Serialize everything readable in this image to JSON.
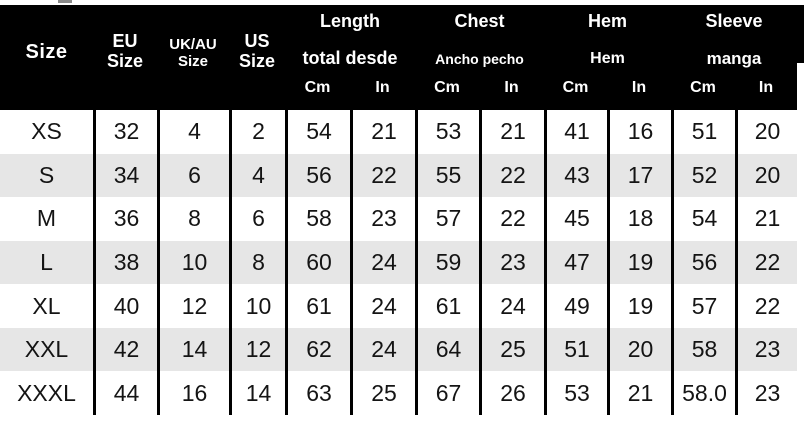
{
  "title": "Garment size chart",
  "colors": {
    "header_bg": "#000000",
    "header_text": "#ffffff",
    "row_bg": "#ffffff",
    "row_alt_bg": "#e6e6e6",
    "grid_line": "#000000",
    "body_text": "#141414"
  },
  "chart_data": {
    "type": "table",
    "header": {
      "size": "Size",
      "eu": [
        "EU",
        "Size"
      ],
      "ukau": [
        "UK/AU",
        "Size"
      ],
      "us": [
        "US",
        "Size"
      ],
      "groups": [
        {
          "label": "Length",
          "sub": "total desde",
          "units": [
            "Cm",
            "In"
          ]
        },
        {
          "label": "Chest",
          "sub": "Ancho pecho",
          "units": [
            "Cm",
            "In"
          ]
        },
        {
          "label": "Hem",
          "sub": "Hem",
          "units": [
            "Cm",
            "In"
          ]
        },
        {
          "label": "Sleeve",
          "sub": "manga",
          "units": [
            "Cm",
            "In"
          ]
        }
      ]
    },
    "columns": [
      "Size",
      "EU Size",
      "UK/AU Size",
      "US Size",
      "Length Cm",
      "Length In",
      "Chest Cm",
      "Chest In",
      "Hem Cm",
      "Hem In",
      "Sleeve Cm",
      "Sleeve In"
    ],
    "rows": [
      {
        "size": "XS",
        "values": [
          "32",
          "4",
          "2",
          "54",
          "21",
          "53",
          "21",
          "41",
          "16",
          "51",
          "20"
        ]
      },
      {
        "size": "S",
        "values": [
          "34",
          "6",
          "4",
          "56",
          "22",
          "55",
          "22",
          "43",
          "17",
          "52",
          "20"
        ]
      },
      {
        "size": "M",
        "values": [
          "36",
          "8",
          "6",
          "58",
          "23",
          "57",
          "22",
          "45",
          "18",
          "54",
          "21"
        ]
      },
      {
        "size": "L",
        "values": [
          "38",
          "10",
          "8",
          "60",
          "24",
          "59",
          "23",
          "47",
          "19",
          "56",
          "22"
        ]
      },
      {
        "size": "XL",
        "values": [
          "40",
          "12",
          "10",
          "61",
          "24",
          "61",
          "24",
          "49",
          "19",
          "57",
          "22"
        ]
      },
      {
        "size": "XXL",
        "values": [
          "42",
          "14",
          "12",
          "62",
          "24",
          "64",
          "25",
          "51",
          "20",
          "58",
          "23"
        ]
      },
      {
        "size": "XXXL",
        "values": [
          "44",
          "16",
          "14",
          "63",
          "25",
          "67",
          "26",
          "53",
          "21",
          "58.0",
          "23"
        ]
      }
    ]
  }
}
